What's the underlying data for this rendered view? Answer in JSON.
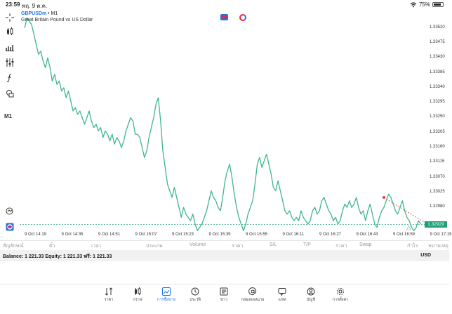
{
  "status_bar": {
    "time": "23:59",
    "date": "พฤ. 9 ต.ค.",
    "battery": "75%"
  },
  "chart_header": {
    "symbol": "GBPUSDm",
    "separator": "•",
    "timeframe": "M1",
    "description": "Great Britain Pound vs US Dollar"
  },
  "toolbar": {
    "timeframe_label": "M1",
    "icons": [
      "crosshair-icon",
      "candles-icon",
      "indicators-icon",
      "settings-icon",
      "function-icon",
      "objects-icon"
    ]
  },
  "colors": {
    "line": "#3fb68b",
    "bid_line": "#1e9f73",
    "accent": "#1a73e8"
  },
  "chart_data": {
    "type": "line",
    "title": "",
    "xlabel": "",
    "ylabel": "",
    "ylim": [
      1.32915,
      1.3357
    ],
    "y_ticks": [
      "1.33520",
      "1.33475",
      "1.33430",
      "1.33385",
      "1.33340",
      "1.33295",
      "1.33250",
      "1.33205",
      "1.33160",
      "1.33115",
      "1.33070",
      "1.33025",
      "1.32980"
    ],
    "y_tick_values": [
      1.3352,
      1.33475,
      1.3343,
      1.33385,
      1.3334,
      1.33295,
      1.3325,
      1.33205,
      1.3316,
      1.33115,
      1.3307,
      1.33025,
      1.3298
    ],
    "x_ticks": [
      "9 Oct 14:19",
      "9 Oct 14:35",
      "9 Oct 14:51",
      "9 Oct 15:07",
      "9 Oct 15:23",
      "9 Oct 15:39",
      "9 Oct 15:55",
      "9 Oct 16:11",
      "9 Oct 16:27",
      "9 Oct 16:43",
      "9 Oct 16:59",
      "9 Oct 17:15"
    ],
    "x_tick_minutes": [
      0,
      16,
      32,
      48,
      64,
      80,
      96,
      112,
      128,
      144,
      160,
      176
    ],
    "x_max_minutes": 176,
    "current_price": "1.32929",
    "current_price_value": 1.32929,
    "series": [
      {
        "values": [
          [
            -3,
            1.3352
          ],
          [
            -2,
            1.3355
          ],
          [
            0,
            1.3353
          ],
          [
            1,
            1.335
          ],
          [
            2,
            1.3347
          ],
          [
            3,
            1.3344
          ],
          [
            4,
            1.3345
          ],
          [
            5,
            1.3342
          ],
          [
            6,
            1.334
          ],
          [
            7,
            1.3343
          ],
          [
            8,
            1.334
          ],
          [
            9,
            1.3336
          ],
          [
            10,
            1.3338
          ],
          [
            11,
            1.3335
          ],
          [
            12,
            1.3336
          ],
          [
            13,
            1.3333
          ],
          [
            14,
            1.3334
          ],
          [
            15,
            1.3331
          ],
          [
            16,
            1.3333
          ],
          [
            17,
            1.333
          ],
          [
            18,
            1.3327
          ],
          [
            19,
            1.3328
          ],
          [
            20,
            1.3326
          ],
          [
            21,
            1.3327
          ],
          [
            22,
            1.3325
          ],
          [
            23,
            1.3323
          ],
          [
            24,
            1.3325
          ],
          [
            25,
            1.3327
          ],
          [
            26,
            1.3324
          ],
          [
            27,
            1.3322
          ],
          [
            28,
            1.3323
          ],
          [
            29,
            1.3321
          ],
          [
            30,
            1.3322
          ],
          [
            31,
            1.3319
          ],
          [
            32,
            1.3321
          ],
          [
            33,
            1.332
          ],
          [
            34,
            1.3318
          ],
          [
            35,
            1.332
          ],
          [
            36,
            1.3317
          ],
          [
            37,
            1.3319
          ],
          [
            38,
            1.3318
          ],
          [
            39,
            1.3316
          ],
          [
            40,
            1.3318
          ],
          [
            41,
            1.3321
          ],
          [
            42,
            1.3323
          ],
          [
            43,
            1.3325
          ],
          [
            44,
            1.3324
          ],
          [
            45,
            1.332
          ],
          [
            46,
            1.332
          ],
          [
            47,
            1.3319
          ],
          [
            48,
            1.3316
          ],
          [
            49,
            1.3313
          ],
          [
            50,
            1.3315
          ],
          [
            51,
            1.3319
          ],
          [
            52,
            1.3322
          ],
          [
            53,
            1.3325
          ],
          [
            54,
            1.3329
          ],
          [
            55,
            1.3331
          ],
          [
            56,
            1.3324
          ],
          [
            57,
            1.3315
          ],
          [
            58,
            1.331
          ],
          [
            59,
            1.3305
          ],
          [
            60,
            1.3303
          ],
          [
            61,
            1.3301
          ],
          [
            62,
            1.3304
          ],
          [
            63,
            1.3301
          ],
          [
            64,
            1.3298
          ],
          [
            65,
            1.3295
          ],
          [
            66,
            1.3298
          ],
          [
            67,
            1.3296
          ],
          [
            68,
            1.3295
          ],
          [
            69,
            1.3294
          ],
          [
            70,
            1.3296
          ],
          [
            71,
            1.3293
          ],
          [
            72,
            1.3291
          ],
          [
            73,
            1.3292
          ],
          [
            74,
            1.3293
          ],
          [
            75,
            1.3295
          ],
          [
            76,
            1.3297
          ],
          [
            77,
            1.33
          ],
          [
            78,
            1.3303
          ],
          [
            79,
            1.3301
          ],
          [
            80,
            1.33
          ],
          [
            81,
            1.3298
          ],
          [
            82,
            1.3297
          ],
          [
            83,
            1.3301
          ],
          [
            84,
            1.3306
          ],
          [
            85,
            1.3309
          ],
          [
            86,
            1.3311
          ],
          [
            87,
            1.3307
          ],
          [
            88,
            1.3302
          ],
          [
            89,
            1.3298
          ],
          [
            90,
            1.3295
          ],
          [
            91,
            1.3293
          ],
          [
            92,
            1.3291
          ],
          [
            93,
            1.3293
          ],
          [
            94,
            1.3296
          ],
          [
            95,
            1.3298
          ],
          [
            96,
            1.33
          ],
          [
            97,
            1.3305
          ],
          [
            98,
            1.3311
          ],
          [
            99,
            1.3313
          ],
          [
            100,
            1.331
          ],
          [
            101,
            1.3312
          ],
          [
            102,
            1.3314
          ],
          [
            103,
            1.3311
          ],
          [
            104,
            1.3308
          ],
          [
            105,
            1.3304
          ],
          [
            106,
            1.3303
          ],
          [
            107,
            1.3306
          ],
          [
            108,
            1.3303
          ],
          [
            109,
            1.33
          ],
          [
            110,
            1.3297
          ],
          [
            111,
            1.3296
          ],
          [
            112,
            1.3297
          ],
          [
            113,
            1.3295
          ],
          [
            114,
            1.3294
          ],
          [
            115,
            1.3295
          ],
          [
            116,
            1.3294
          ],
          [
            117,
            1.3297
          ],
          [
            118,
            1.3295
          ],
          [
            119,
            1.3294
          ],
          [
            120,
            1.3293
          ],
          [
            121,
            1.3294
          ],
          [
            122,
            1.3297
          ],
          [
            123,
            1.3298
          ],
          [
            124,
            1.3296
          ],
          [
            125,
            1.3297
          ],
          [
            126,
            1.33
          ],
          [
            127,
            1.3301
          ],
          [
            128,
            1.3299
          ],
          [
            129,
            1.3297
          ],
          [
            130,
            1.3296
          ],
          [
            131,
            1.3294
          ],
          [
            132,
            1.3295
          ],
          [
            133,
            1.3293
          ],
          [
            134,
            1.3294
          ],
          [
            135,
            1.3297
          ],
          [
            136,
            1.3299
          ],
          [
            137,
            1.3298
          ],
          [
            138,
            1.33
          ],
          [
            139,
            1.3298
          ],
          [
            140,
            1.3299
          ],
          [
            141,
            1.3301
          ],
          [
            142,
            1.3298
          ],
          [
            143,
            1.3296
          ],
          [
            144,
            1.3297
          ],
          [
            145,
            1.3294
          ],
          [
            146,
            1.3297
          ],
          [
            147,
            1.3299
          ],
          [
            148,
            1.3296
          ],
          [
            149,
            1.3293
          ],
          [
            150,
            1.3292
          ],
          [
            151,
            1.3295
          ],
          [
            152,
            1.3297
          ],
          [
            153,
            1.3298
          ],
          [
            154,
            1.33
          ],
          [
            155,
            1.3302
          ],
          [
            156,
            1.3301
          ],
          [
            157,
            1.3299
          ],
          [
            158,
            1.3297
          ],
          [
            159,
            1.3296
          ],
          [
            160,
            1.3298
          ],
          [
            161,
            1.33
          ],
          [
            162,
            1.3297
          ],
          [
            163,
            1.3295
          ],
          [
            164,
            1.3294
          ],
          [
            165,
            1.3292
          ],
          [
            166,
            1.3291
          ],
          [
            167,
            1.3292
          ],
          [
            168,
            1.3294
          ],
          [
            169,
            1.3293
          ]
        ]
      }
    ],
    "trend_line": {
      "from": [
        153,
        1.3301
      ],
      "to": [
        172,
        1.32929
      ]
    },
    "grid": false
  },
  "table_columns": [
    "สัญลักษณ์",
    "ตั๋ว",
    "เวลา",
    "ประเภท",
    "Volume",
    "ราคา",
    "S/L",
    "T/P",
    "ราคา",
    "Swap",
    "กำไร",
    "หมายเหตุ"
  ],
  "account": {
    "summary": "Balance: 1 221.33 Equity: 1 221.33 ฟรี: 1 221.33",
    "currency": "USD"
  },
  "tabs": [
    {
      "label": "ราคา",
      "icon": "quotes-icon",
      "active": false
    },
    {
      "label": "กราฟ",
      "icon": "chart-icon",
      "active": false
    },
    {
      "label": "การซื้อขาย",
      "icon": "trade-icon",
      "active": true
    },
    {
      "label": "ประวัติ",
      "icon": "history-icon",
      "active": false
    },
    {
      "label": "ข่าว",
      "icon": "news-icon",
      "active": false
    },
    {
      "label": "กล่องจดหมาย",
      "icon": "mailbox-icon",
      "active": false
    },
    {
      "label": "แชท",
      "icon": "chat-icon",
      "active": false
    },
    {
      "label": "บัญชี",
      "icon": "account-icon",
      "active": false
    },
    {
      "label": "การตั้งค่า",
      "icon": "settings-icon",
      "active": false
    }
  ]
}
